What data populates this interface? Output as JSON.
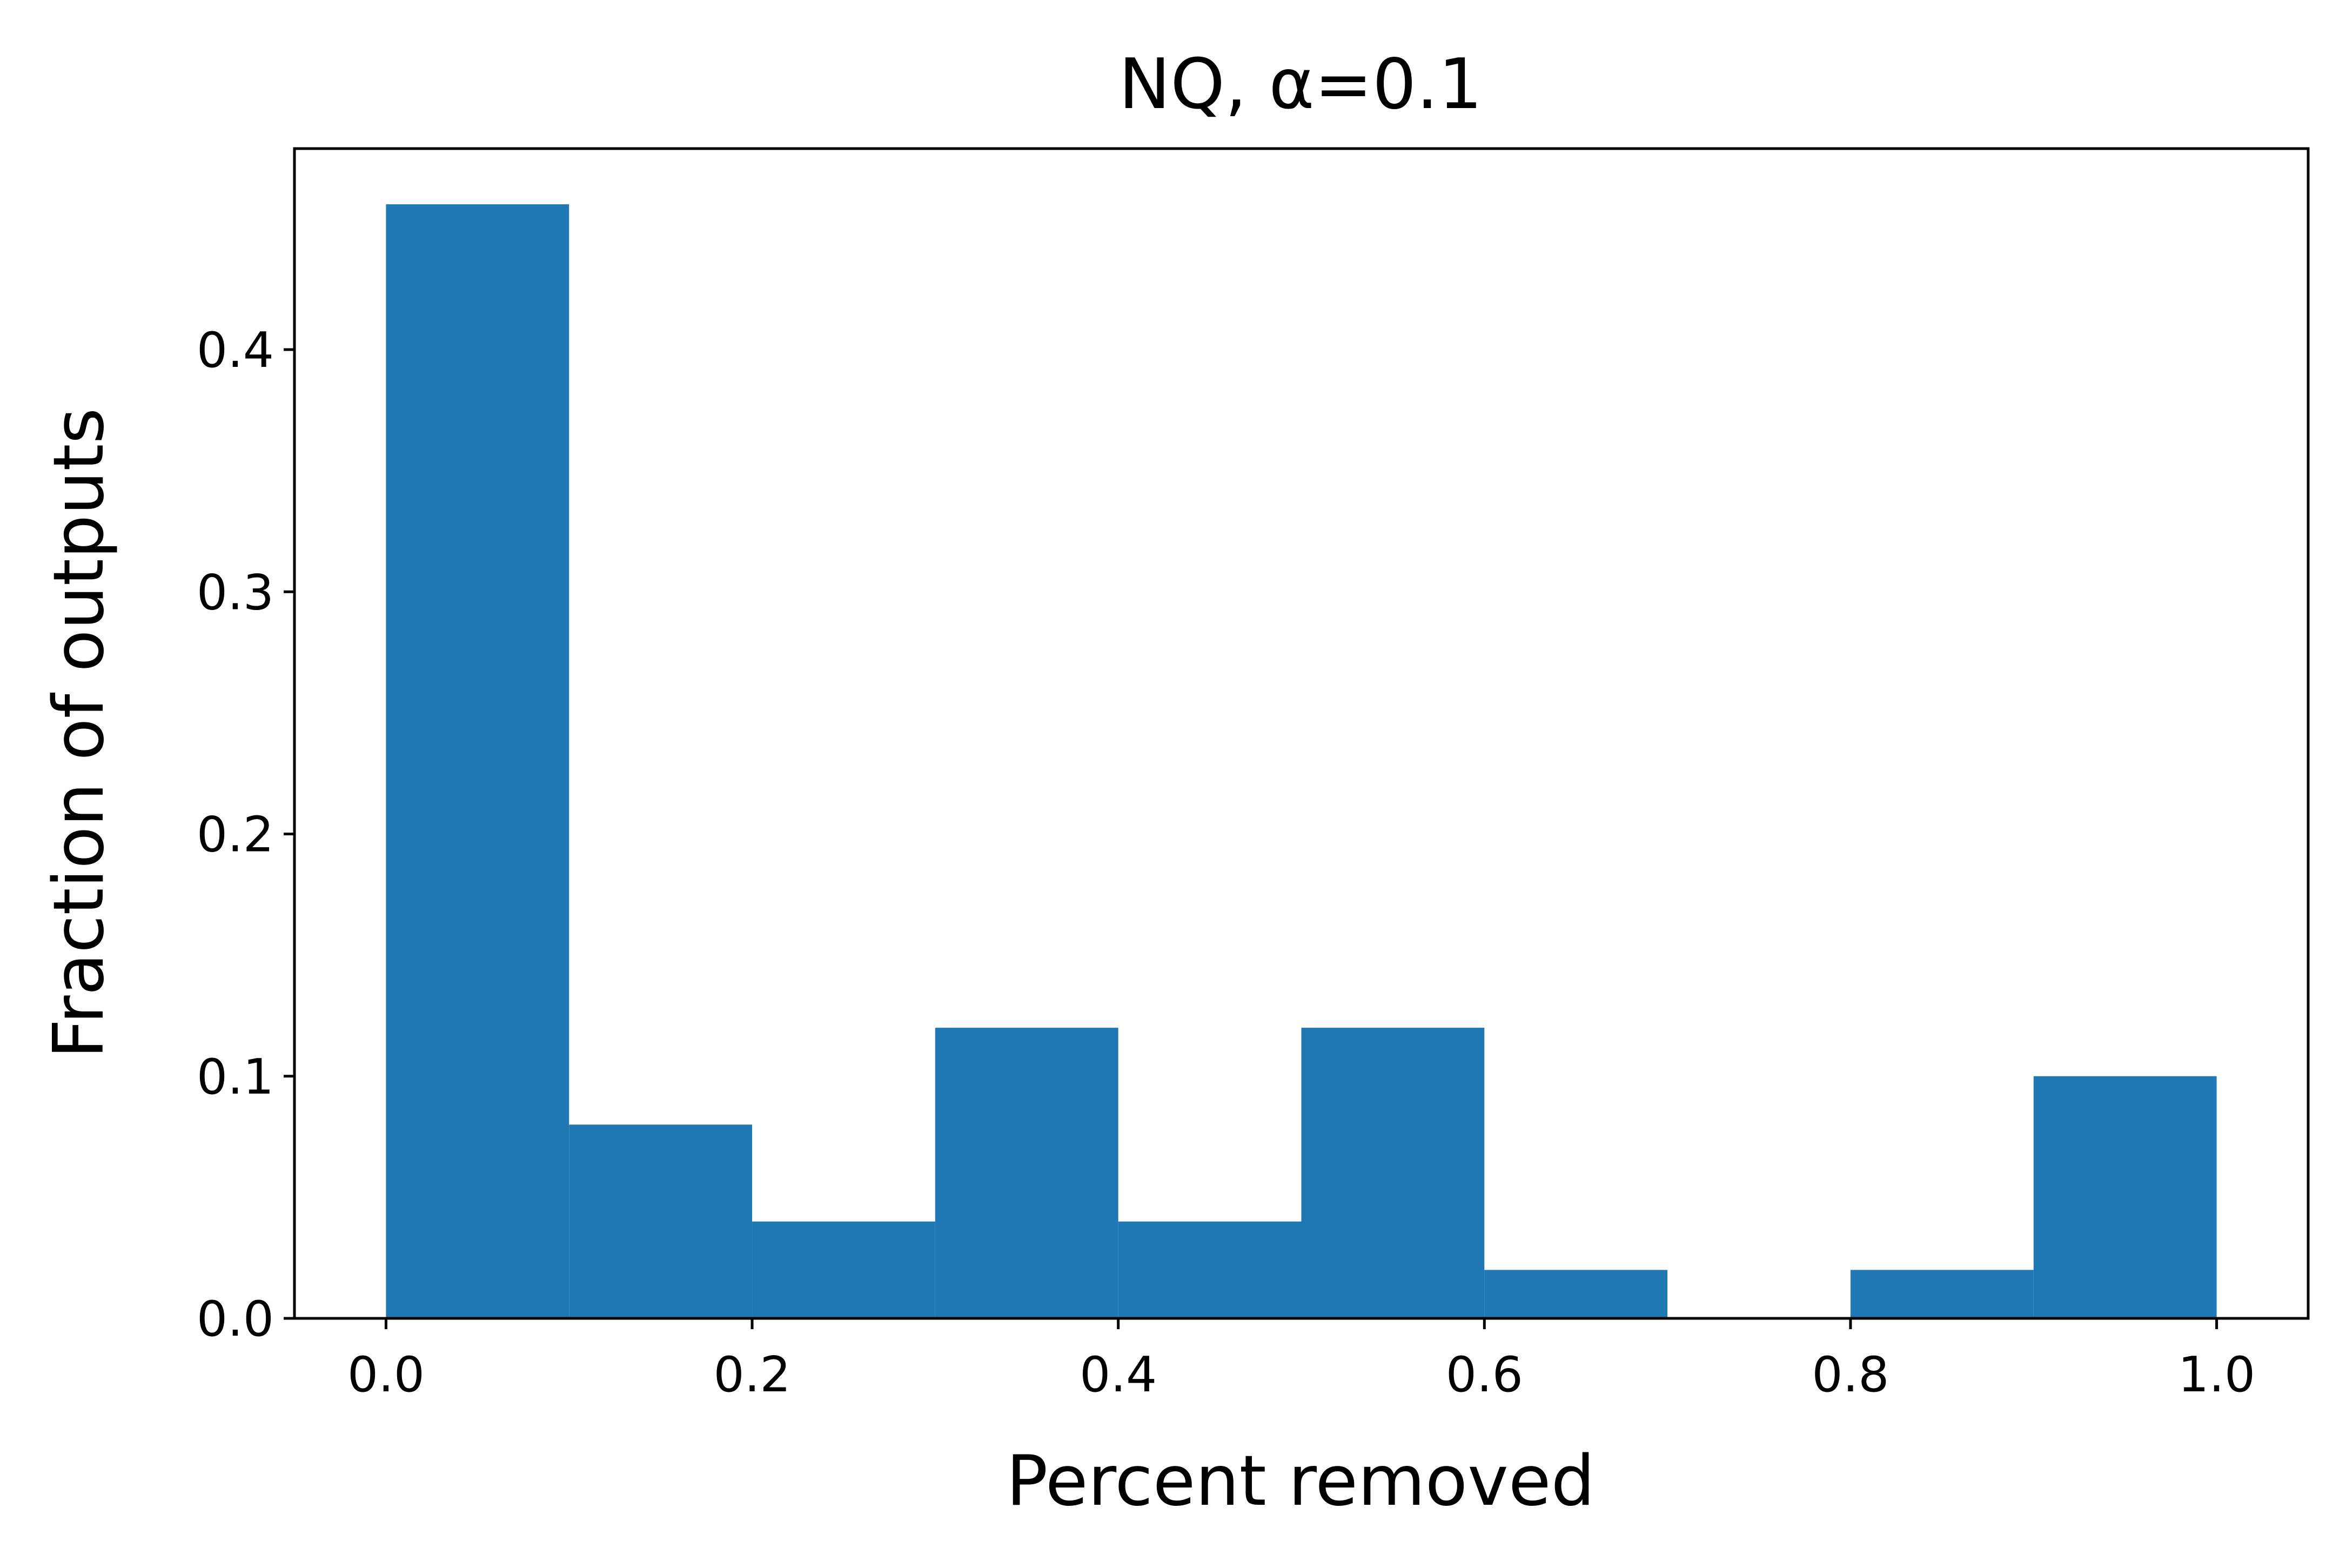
{
  "chart_data": {
    "type": "bar",
    "title": "NQ, α=0.1",
    "xlabel": "Percent removed",
    "ylabel": "Fraction of outputs",
    "xlim": [
      -0.05,
      1.05
    ],
    "ylim": [
      0,
      0.483
    ],
    "bar_color": "#1f77b4",
    "grid": false,
    "bins": [
      {
        "x0": 0.0,
        "x1": 0.1,
        "value": 0.46
      },
      {
        "x0": 0.1,
        "x1": 0.2,
        "value": 0.08
      },
      {
        "x0": 0.2,
        "x1": 0.3,
        "value": 0.04
      },
      {
        "x0": 0.3,
        "x1": 0.4,
        "value": 0.12
      },
      {
        "x0": 0.4,
        "x1": 0.5,
        "value": 0.04
      },
      {
        "x0": 0.5,
        "x1": 0.6,
        "value": 0.12
      },
      {
        "x0": 0.6,
        "x1": 0.7,
        "value": 0.02
      },
      {
        "x0": 0.7,
        "x1": 0.8,
        "value": 0.0
      },
      {
        "x0": 0.8,
        "x1": 0.9,
        "value": 0.02
      },
      {
        "x0": 0.9,
        "x1": 1.0,
        "value": 0.1
      }
    ],
    "xticks": [
      {
        "value": 0.0,
        "label": "0.0"
      },
      {
        "value": 0.2,
        "label": "0.2"
      },
      {
        "value": 0.4,
        "label": "0.4"
      },
      {
        "value": 0.6,
        "label": "0.6"
      },
      {
        "value": 0.8,
        "label": "0.8"
      },
      {
        "value": 1.0,
        "label": "1.0"
      }
    ],
    "yticks": [
      {
        "value": 0.0,
        "label": "0.0"
      },
      {
        "value": 0.1,
        "label": "0.1"
      },
      {
        "value": 0.2,
        "label": "0.2"
      },
      {
        "value": 0.3,
        "label": "0.3"
      },
      {
        "value": 0.4,
        "label": "0.4"
      }
    ]
  }
}
